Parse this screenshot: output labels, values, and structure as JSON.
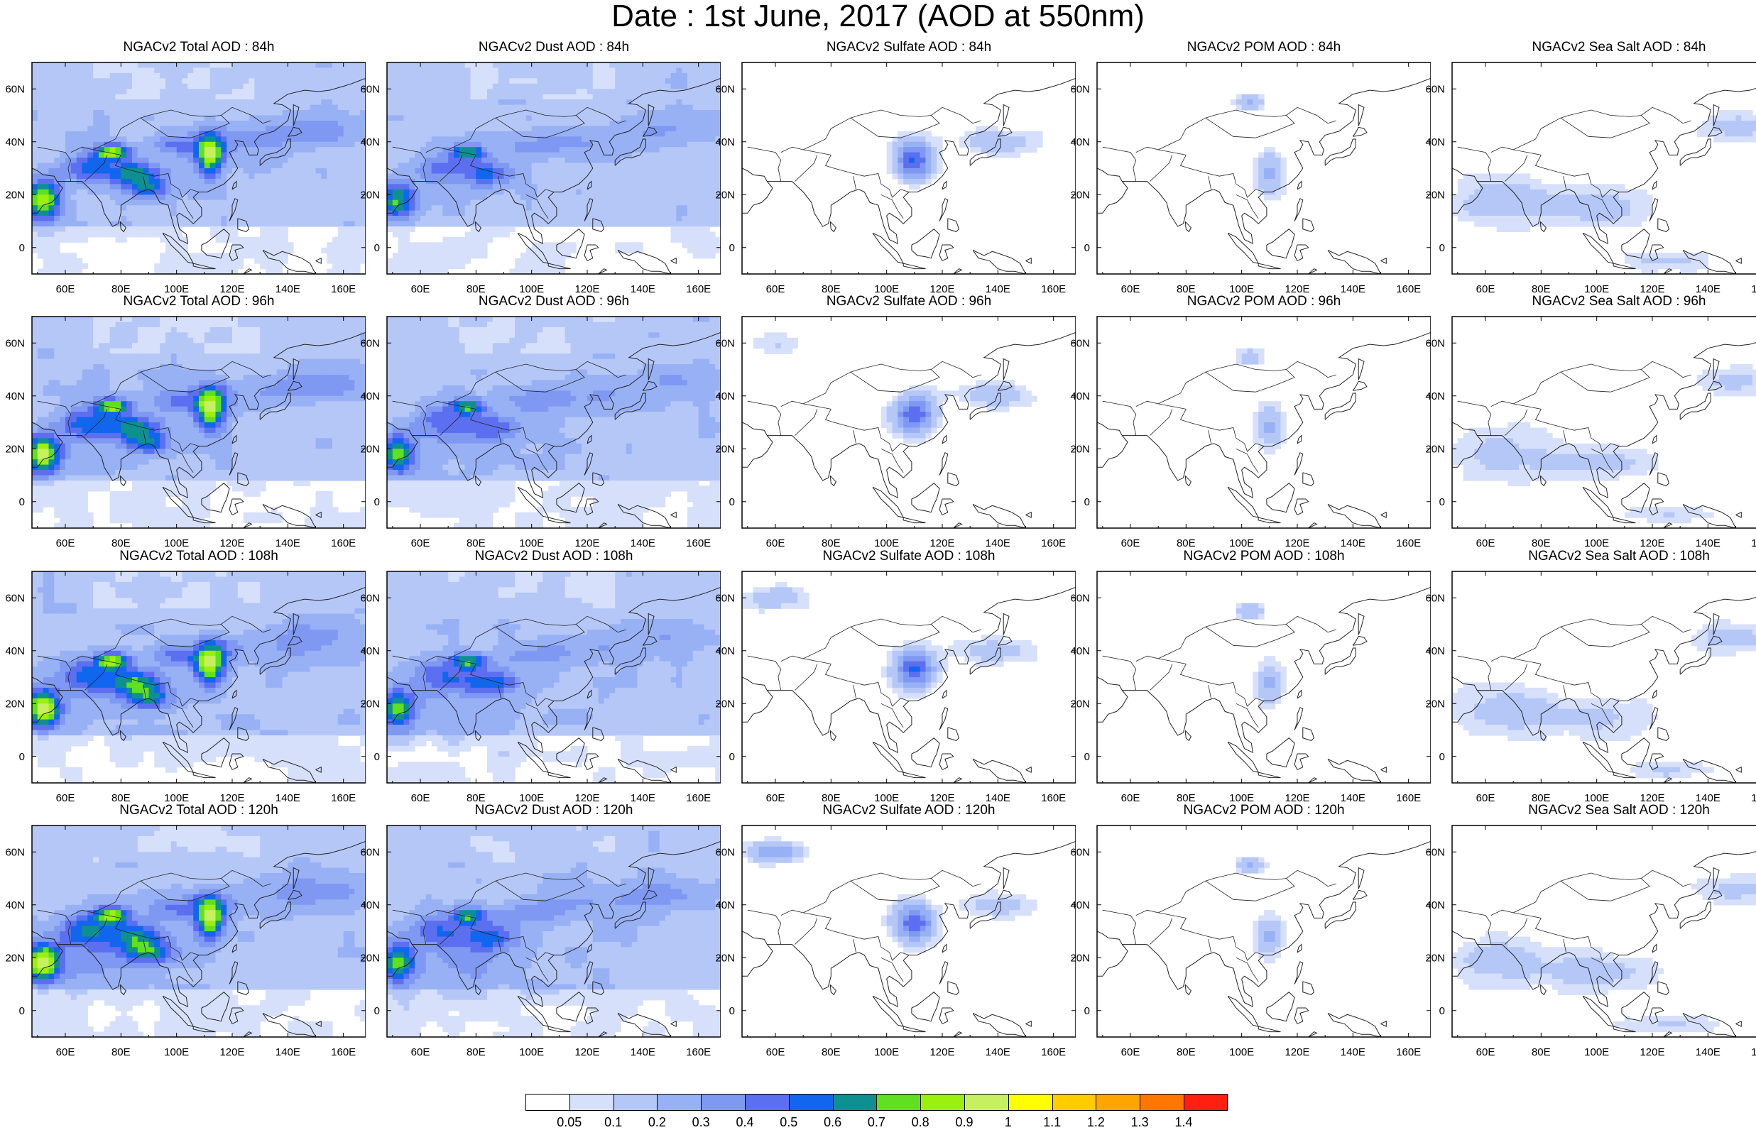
{
  "title": "Date : 1st June, 2017 (AOD at 550nm)",
  "lon_ticks": [
    "60E",
    "80E",
    "100E",
    "120E",
    "140E",
    "160E"
  ],
  "lat_ticks": [
    "60N",
    "40N",
    "20N",
    "0"
  ],
  "colorbar": {
    "colors": [
      "#ffffff",
      "#d6e0fa",
      "#b5c7f7",
      "#98b1f5",
      "#7f99f3",
      "#5c6ff0",
      "#1166ee",
      "#0f9090",
      "#5fe020",
      "#9cf010",
      "#c6f060",
      "#ffff00",
      "#ffcc00",
      "#ffa500",
      "#ff7700",
      "#ff2010"
    ],
    "labels": [
      "0.05",
      "0.1",
      "0.2",
      "0.3",
      "0.4",
      "0.5",
      "0.6",
      "0.7",
      "0.8",
      "0.9",
      "1",
      "1.1",
      "1.2",
      "1.3",
      "1.4"
    ]
  },
  "rows": [
    {
      "panels": [
        {
          "title": "NGACv2 Total AOD : 84h"
        },
        {
          "title": "NGACv2 Dust AOD : 84h"
        },
        {
          "title": "NGACv2 Sulfate AOD : 84h"
        },
        {
          "title": "NGACv2 POM AOD : 84h"
        },
        {
          "title": "NGACv2 Sea Salt AOD : 84h"
        }
      ]
    },
    {
      "panels": [
        {
          "title": "NGACv2 Total AOD : 96h"
        },
        {
          "title": "NGACv2 Dust AOD : 96h"
        },
        {
          "title": "NGACv2 Sulfate AOD : 96h"
        },
        {
          "title": "NGACv2 POM AOD : 96h"
        },
        {
          "title": "NGACv2 Sea Salt AOD : 96h"
        }
      ]
    },
    {
      "panels": [
        {
          "title": "NGACv2 Total AOD : 108h"
        },
        {
          "title": "NGACv2 Dust AOD : 108h"
        },
        {
          "title": "NGACv2 Sulfate AOD : 108h"
        },
        {
          "title": "NGACv2 POM AOD : 108h"
        },
        {
          "title": "NGACv2 Sea Salt AOD : 108h"
        }
      ]
    },
    {
      "panels": [
        {
          "title": "NGACv2 Total AOD : 120h"
        },
        {
          "title": "NGACv2 Dust AOD : 120h"
        },
        {
          "title": "NGACv2 Sulfate AOD : 120h"
        },
        {
          "title": "NGACv2 POM AOD : 120h"
        },
        {
          "title": "NGACv2 Sea Salt  AOD : 120h"
        }
      ]
    }
  ]
}
